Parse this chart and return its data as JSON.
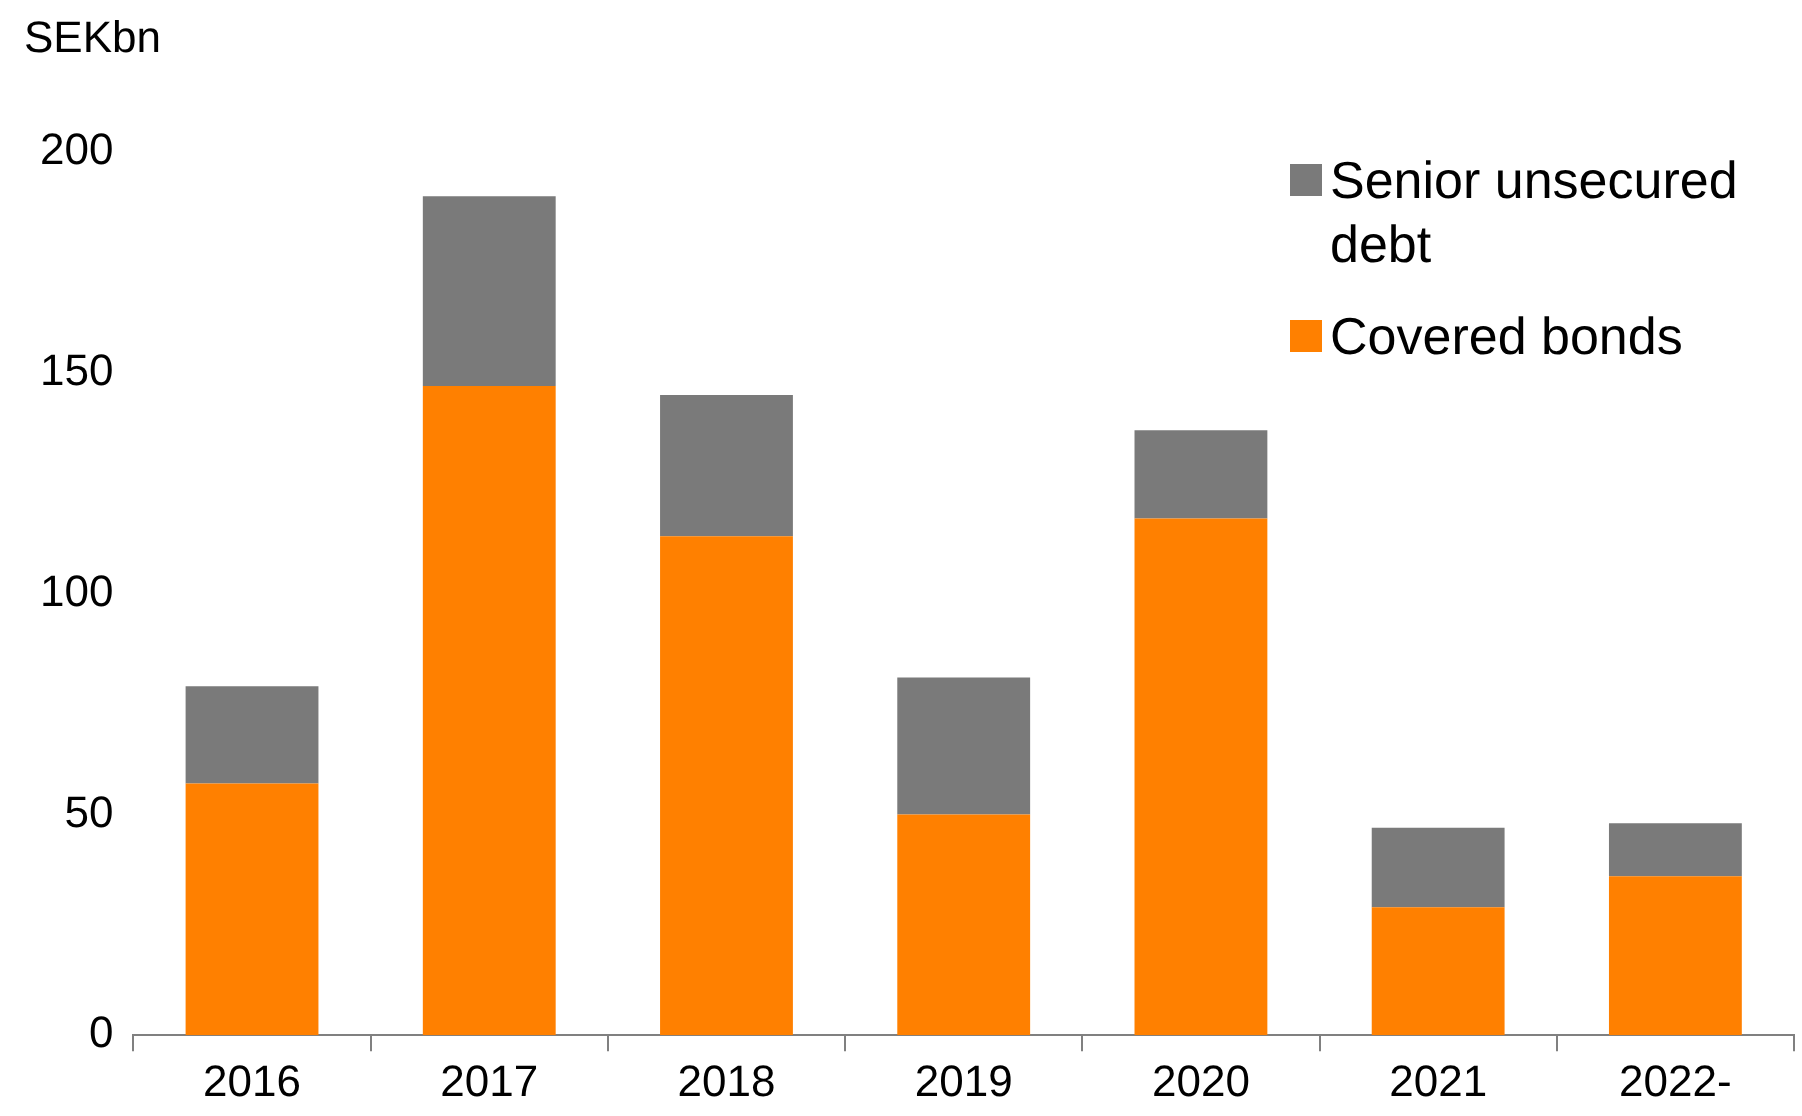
{
  "chart_data": {
    "type": "bar",
    "ylabel": "SEKbn",
    "categories": [
      "2016",
      "2017",
      "2018",
      "2019",
      "2020",
      "2021",
      "2022-"
    ],
    "series": [
      {
        "name": "Covered bonds",
        "color": "#ff8000",
        "values": [
          57,
          147,
          113,
          50,
          117,
          29,
          36
        ]
      },
      {
        "name": "Senior unsecured debt",
        "color": "#7a7a7a",
        "values": [
          22,
          43,
          32,
          31,
          20,
          18,
          12
        ]
      }
    ],
    "stacked": true,
    "ylim": [
      0,
      200
    ],
    "yticks": [
      0,
      50,
      100,
      150,
      200
    ],
    "grid": false,
    "legend": "top right"
  }
}
